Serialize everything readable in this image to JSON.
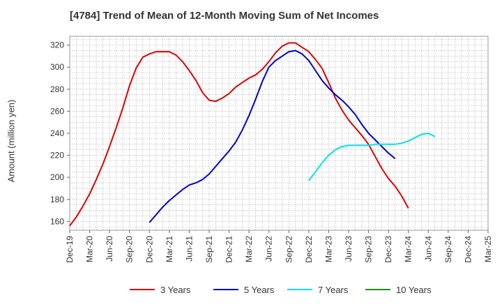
{
  "chart_data": {
    "type": "line",
    "title": "[4784]  Trend of Mean of 12-Month Moving Sum of Net Incomes",
    "xlabel": "",
    "ylabel": "Amount (million yen)",
    "ylim": [
      152,
      328
    ],
    "yticks": [
      160,
      180,
      200,
      220,
      240,
      260,
      280,
      300,
      320
    ],
    "x_tick_labels": [
      "Dec-19",
      "Mar-20",
      "Jun-20",
      "Sep-20",
      "Dec-20",
      "Mar-21",
      "Jun-21",
      "Sep-21",
      "Dec-21",
      "Mar-22",
      "Jun-22",
      "Sep-22",
      "Dec-22",
      "Mar-23",
      "Jun-23",
      "Sep-23",
      "Dec-23",
      "Mar-24",
      "Jun-24",
      "Sep-24",
      "Dec-24",
      "Mar-25"
    ],
    "grid": true,
    "legend_position": "bottom",
    "series": [
      {
        "name": "3 Years",
        "color": "#dd0000",
        "start_month_index": 0,
        "values": [
          156,
          164,
          174,
          185,
          198,
          212,
          228,
          245,
          263,
          283,
          299,
          309,
          312,
          314,
          314,
          314,
          311,
          305,
          297,
          288,
          277,
          270,
          269,
          272,
          276,
          282,
          286,
          290,
          293,
          298,
          305,
          313,
          319,
          322,
          322,
          318,
          314,
          307,
          299,
          286,
          272,
          261,
          252,
          245,
          238,
          230,
          219,
          208,
          199,
          192,
          183,
          172
        ]
      },
      {
        "name": "5 Years",
        "color": "#0000cc",
        "start_month_index": 12,
        "values": [
          159,
          166,
          173,
          179,
          184,
          189,
          193,
          195,
          198,
          203,
          210,
          217,
          224,
          232,
          243,
          256,
          271,
          287,
          300,
          306,
          310,
          314,
          315,
          312,
          306,
          297,
          288,
          281,
          275,
          270,
          264,
          257,
          248,
          240,
          234,
          228,
          222,
          217
        ]
      },
      {
        "name": "7 Years",
        "color": "#00e5e5",
        "start_month_index": 36,
        "values": [
          197,
          205,
          213,
          220,
          225,
          228,
          229,
          229,
          229,
          229,
          230,
          230,
          230,
          230,
          231,
          233,
          236,
          239,
          240,
          237
        ]
      },
      {
        "name": "10 Years",
        "color": "#228b22",
        "start_month_index": 0,
        "values": []
      }
    ]
  }
}
